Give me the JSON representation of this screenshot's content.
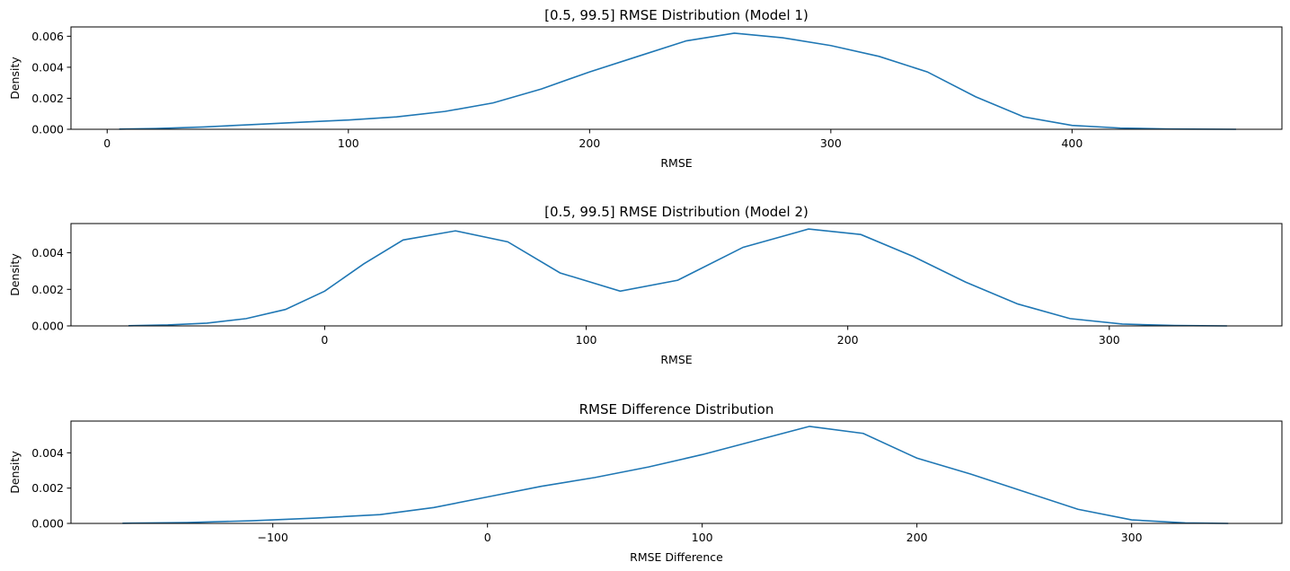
{
  "chart_data": [
    {
      "type": "line",
      "title": "[0.5, 99.5] RMSE Distribution (Model 1)",
      "xlabel": "RMSE",
      "ylabel": "Density",
      "xlim": [
        -15,
        487
      ],
      "ylim": [
        0,
        0.0066
      ],
      "xticks": [
        0,
        100,
        200,
        300,
        400
      ],
      "xtick_labels": [
        "0",
        "100",
        "200",
        "300",
        "400"
      ],
      "yticks": [
        0,
        0.002,
        0.004,
        0.006
      ],
      "ytick_labels": [
        "0.000",
        "0.002",
        "0.004",
        "0.006"
      ],
      "grid": false,
      "series": [
        {
          "color": "#1f77b4",
          "x": [
            5,
            20,
            40,
            60,
            80,
            100,
            120,
            140,
            160,
            180,
            200,
            220,
            240,
            260,
            280,
            300,
            320,
            340,
            360,
            380,
            400,
            420,
            440,
            468
          ],
          "y": [
            1e-05,
            5e-05,
            0.00015,
            0.0003,
            0.00045,
            0.0006,
            0.0008,
            0.00115,
            0.0017,
            0.0026,
            0.0037,
            0.0047,
            0.0057,
            0.0062,
            0.0059,
            0.0054,
            0.0047,
            0.0037,
            0.0021,
            0.0008,
            0.00025,
            8e-05,
            2e-05,
            0.0
          ]
        }
      ]
    },
    {
      "type": "line",
      "title": "[0.5, 99.5] RMSE Distribution (Model 2)",
      "xlabel": "RMSE",
      "ylabel": "Density",
      "xlim": [
        -97,
        366
      ],
      "ylim": [
        0,
        0.0056
      ],
      "xticks": [
        0,
        100,
        200,
        300
      ],
      "xtick_labels": [
        "0",
        "100",
        "200",
        "300"
      ],
      "yticks": [
        0,
        0.002,
        0.004
      ],
      "ytick_labels": [
        "0.000",
        "0.002",
        "0.004"
      ],
      "grid": false,
      "series": [
        {
          "color": "#1f77b4",
          "x": [
            -75,
            -60,
            -45,
            -30,
            -15,
            0,
            15,
            30,
            50,
            70,
            90,
            113,
            135,
            160,
            185,
            205,
            225,
            245,
            265,
            285,
            305,
            325,
            345
          ],
          "y": [
            1e-05,
            5e-05,
            0.00015,
            0.0004,
            0.0009,
            0.0019,
            0.0034,
            0.0047,
            0.0052,
            0.0046,
            0.0029,
            0.0019,
            0.0025,
            0.0043,
            0.0053,
            0.005,
            0.0038,
            0.0024,
            0.0012,
            0.0004,
            0.0001,
            2e-05,
            0.0
          ]
        }
      ]
    },
    {
      "type": "line",
      "title": "RMSE Difference Distribution",
      "xlabel": "RMSE Difference",
      "ylabel": "Density",
      "xlim": [
        -194,
        370
      ],
      "ylim": [
        0,
        0.0058
      ],
      "xticks": [
        -100,
        0,
        100,
        200,
        300
      ],
      "xtick_labels": [
        "−100",
        "0",
        "100",
        "200",
        "300"
      ],
      "yticks": [
        0,
        0.002,
        0.004
      ],
      "ytick_labels": [
        "0.000",
        "0.002",
        "0.004"
      ],
      "grid": false,
      "series": [
        {
          "color": "#1f77b4",
          "x": [
            -170,
            -140,
            -110,
            -80,
            -50,
            -25,
            0,
            25,
            50,
            75,
            100,
            125,
            150,
            175,
            200,
            225,
            250,
            275,
            300,
            325,
            345
          ],
          "y": [
            1e-05,
            5e-05,
            0.00015,
            0.0003,
            0.0005,
            0.0009,
            0.0015,
            0.0021,
            0.0026,
            0.0032,
            0.0039,
            0.0047,
            0.0055,
            0.0051,
            0.0037,
            0.0028,
            0.0018,
            0.0008,
            0.0002,
            3e-05,
            0.0
          ]
        }
      ]
    }
  ]
}
